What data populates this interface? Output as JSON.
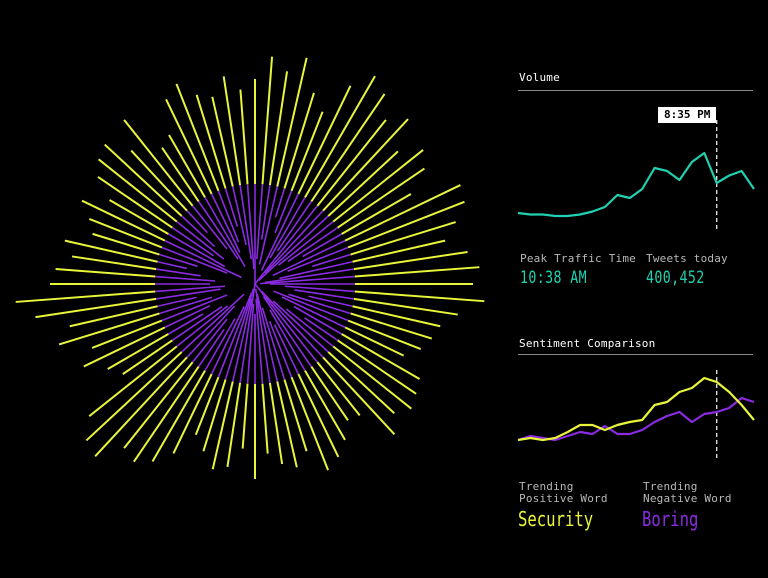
{
  "colors": {
    "background": "#000000",
    "positive": "#e8f53a",
    "negative": "#8a2be2",
    "volume_line": "#1fd1b0",
    "rule": "#8a8a8a",
    "label": "#b8b8b8"
  },
  "volume": {
    "title": "Volume",
    "tooltip_time": "8:35 PM",
    "peak_label": "Peak Traffic Time",
    "peak_value": "10:38 AM",
    "tweets_label": "Tweets today",
    "tweets_value": "400,452"
  },
  "sentiment": {
    "title": "Sentiment Comparison",
    "positive_label_line1": "Trending",
    "positive_label_line2": "Positive Word",
    "positive_word": "Security",
    "negative_label_line1": "Trending",
    "negative_label_line2": "Negative Word",
    "negative_word": "Boring"
  },
  "chart_data": [
    {
      "type": "radial-bar",
      "title": "",
      "series": [
        {
          "values": [
            205,
            228,
            215,
            232,
            200,
            185,
            220,
            240,
            230,
            210,
            225,
            195,
            215,
            205,
            180,
            228,
            225,
            210,
            195,
            215,
            225,
            218,
            230,
            205,
            190,
            185,
            178,
            165,
            190,
            195,
            200,
            190,
            205,
            168,
            165,
            180,
            192,
            200,
            175,
            188,
            182,
            170,
            195,
            165,
            185,
            190,
            175,
            162,
            188,
            205,
            215,
            210,
            235,
            230,
            212,
            160,
            170,
            190,
            175,
            205,
            190,
            222,
            240,
            205,
            200,
            185,
            195,
            170,
            178,
            192,
            168,
            190,
            200,
            205,
            182,
            210,
            165,
            172,
            205,
            215,
            198,
            192,
            210,
            195
          ]
        },
        {
          "values": [
            100,
            75,
            55,
            80,
            30,
            45,
            85,
            70,
            60,
            100,
            85,
            95,
            70,
            60,
            45,
            80,
            65,
            40,
            75,
            90,
            95,
            85,
            70,
            60,
            45,
            65,
            80,
            70,
            55,
            40,
            60,
            75,
            90,
            100,
            85,
            70,
            55,
            60,
            75,
            90,
            95,
            85,
            70,
            80,
            100,
            85,
            95,
            90,
            75,
            60,
            45,
            55,
            70,
            85,
            65,
            60,
            40,
            50,
            70,
            55,
            40,
            65,
            70,
            55,
            60,
            45,
            30,
            40,
            70,
            85,
            65,
            50,
            60,
            45,
            30,
            55,
            70,
            80,
            65,
            55,
            40,
            60,
            75,
            85
          ]
        }
      ]
    },
    {
      "type": "line",
      "title": "Volume",
      "x": [
        0,
        1,
        2,
        3,
        4,
        5,
        6,
        7,
        8,
        9,
        10,
        11,
        12,
        13,
        14,
        15,
        16,
        17,
        18,
        19
      ],
      "series": [
        {
          "values": [
            18,
            17,
            17,
            16,
            16,
            17,
            19,
            22,
            30,
            28,
            34,
            48,
            46,
            40,
            52,
            58,
            38,
            43,
            46,
            34
          ]
        }
      ],
      "ylim": [
        0,
        80
      ],
      "marker_x": 16,
      "marker_label": "8:35 PM"
    },
    {
      "type": "line",
      "title": "Sentiment Comparison",
      "x": [
        0,
        1,
        2,
        3,
        4,
        5,
        6,
        7,
        8,
        9,
        10,
        11,
        12,
        13,
        14,
        15,
        16,
        17,
        18,
        19
      ],
      "series": [
        {
          "values": [
            20,
            22,
            20,
            22,
            28,
            35,
            35,
            30,
            35,
            38,
            40,
            55,
            58,
            68,
            72,
            82,
            78,
            68,
            55,
            40
          ]
        },
        {
          "values": [
            20,
            24,
            22,
            20,
            24,
            28,
            26,
            34,
            26,
            26,
            30,
            38,
            44,
            48,
            38,
            46,
            48,
            52,
            62,
            58
          ]
        }
      ],
      "ylim": [
        0,
        100
      ],
      "marker_x": 16
    }
  ]
}
